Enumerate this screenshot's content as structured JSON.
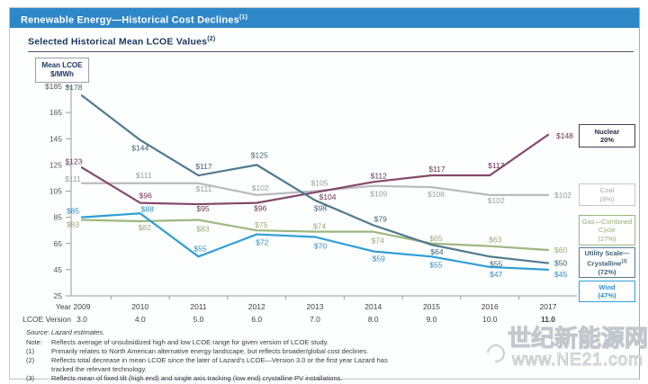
{
  "header": {
    "title": "Renewable Energy—Historical Cost  Declines",
    "sup": "(1)"
  },
  "subtitle": {
    "text": "Selected Historical Mean LCOE  Values",
    "sup": "(2)"
  },
  "axis_box": {
    "line1": "Mean LCOE",
    "line2": "$/MWh"
  },
  "chart_data": {
    "type": "line",
    "x": [
      "2009",
      "2010",
      "2011",
      "2012",
      "2013",
      "2014",
      "2015",
      "2016",
      "2017"
    ],
    "lcoe_versions": [
      "3.0",
      "4.0",
      "5.0",
      "6.0",
      "7.0",
      "8.0",
      "9.0",
      "10.0",
      "11.0"
    ],
    "ylim": [
      25,
      185
    ],
    "yticks": [
      185,
      165,
      145,
      125,
      105,
      85,
      65,
      45,
      25
    ],
    "ytick_labels": [
      "$185",
      "165",
      "145",
      "125",
      "105",
      "85",
      "65",
      "45",
      "25"
    ],
    "grid": false,
    "legend_position": "right",
    "series": [
      {
        "name": "Utility Scale—Crystalline",
        "color": "#4e7b8e",
        "label_color": "#3d6277",
        "values": [
          178,
          144,
          117,
          125,
          98,
          79,
          64,
          55,
          50
        ]
      },
      {
        "name": "Nuclear",
        "color": "#85486b",
        "label_color": "#6d3354",
        "values": [
          123,
          96,
          95,
          96,
          104,
          112,
          117,
          117,
          148
        ]
      },
      {
        "name": "Coal",
        "color": "#babbbf",
        "label_color": "#9b9ca2",
        "values": [
          111,
          111,
          111,
          102,
          105,
          109,
          108,
          102,
          102
        ]
      },
      {
        "name": "Gas—Combined Cycle",
        "color": "#9db77f",
        "label_color": "#94ad76",
        "values": [
          83,
          82,
          83,
          75,
          74,
          74,
          65,
          63,
          60
        ]
      },
      {
        "name": "Wind",
        "color": "#2e9ed6",
        "label_color": "#2e8fc9",
        "values": [
          85,
          88,
          55,
          72,
          70,
          59,
          55,
          47,
          45
        ]
      }
    ]
  },
  "legend": [
    {
      "lines": [
        "Nuclear",
        "20%"
      ],
      "border": "#45405a",
      "text": "#26263a",
      "bold": true
    },
    {
      "lines": [
        "Coal",
        "(8%)"
      ],
      "border": "#c6c7cb",
      "text": "#a9aab0",
      "bold": false
    },
    {
      "lines": [
        "Gas—Combined",
        "Cycle",
        "(27%)"
      ],
      "border": "#9cb67e",
      "text": "#94ad76",
      "bold": false
    },
    {
      "lines": [
        "Utility Scale—",
        "Crystalline(3)",
        "(72%)"
      ],
      "border": "#4e7b8e",
      "text": "#3d6277",
      "bold": true
    },
    {
      "lines": [
        "Wind",
        "(47%)"
      ],
      "border": "#2e9ed6",
      "text": "#2e8fc9",
      "bold": true
    }
  ],
  "rows": {
    "year_label": "Year",
    "version_label": "LCOE  Version"
  },
  "footnotes": {
    "source": "Source: Lazard estimates.",
    "items": [
      {
        "label": "Note:",
        "text": "Reflects average of unsubsidized high and low LCOE  range for given version of LCOE  study."
      },
      {
        "label": "(1)",
        "text": "Primarily  relates to North  American alternative energy landscape, but reflects broader/global cost declines."
      },
      {
        "label": "(2)",
        "text": "Reflects total decrease in mean  LCOE  since the later of Lazard's LCOE—Version 3.0 or the first year Lazard has tracked the relevant technology."
      },
      {
        "label": "(3)",
        "text": "Reflects mean of fixed tilt  (high end) and single axis tracking (low end) crystalline PV installations."
      }
    ]
  },
  "watermark": {
    "line1": "世纪新能源网",
    "line2": "www.NE21.com"
  }
}
